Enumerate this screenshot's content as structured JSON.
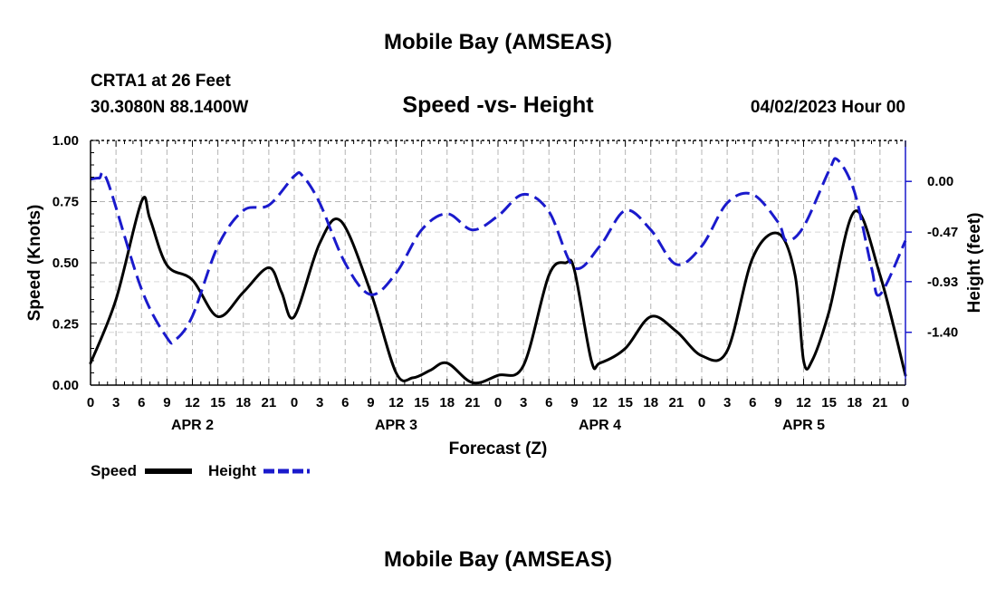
{
  "page": {
    "top_title": "Mobile Bay (AMSEAS)",
    "bottom_title": "Mobile Bay (AMSEAS)"
  },
  "header": {
    "station": "CRTA1 at 26 Feet",
    "coords": "30.3080N  88.1400W",
    "plot_title": "Speed -vs- Height",
    "date": "04/02/2023 Hour 00"
  },
  "legend": {
    "speed_label": "Speed",
    "height_label": "Height"
  },
  "colors": {
    "speed": "#000000",
    "height": "#1a1acc",
    "grid": "#b4b4b4"
  },
  "chart_data": {
    "type": "line",
    "title": "Speed -vs- Height",
    "xlabel": "Forecast (Z)",
    "ylabel": "Speed (Knots)",
    "y2label": "Height (feet)",
    "grid": true,
    "legend_position": "bottom-left",
    "xlim": [
      0,
      96
    ],
    "ylim": [
      0,
      1
    ],
    "y2lim": [
      -1.89,
      0.38
    ],
    "x_tick_labels": [
      "0",
      "3",
      "6",
      "9",
      "12",
      "15",
      "18",
      "21",
      "0",
      "3",
      "6",
      "9",
      "12",
      "15",
      "18",
      "21",
      "0",
      "3",
      "6",
      "9",
      "12",
      "15",
      "18",
      "21",
      "0",
      "3",
      "6",
      "9",
      "12",
      "15",
      "18",
      "21",
      "0"
    ],
    "y_ticks": [
      0,
      0.25,
      0.5,
      0.75,
      1.0
    ],
    "y_tick_labels": [
      "0.00",
      "0.25",
      "0.50",
      "0.75",
      "1.00"
    ],
    "y2_ticks": [
      0,
      -0.47,
      -0.93,
      -1.4
    ],
    "y2_tick_labels": [
      "0.00",
      "-0.47",
      "-0.93",
      "-1.40"
    ],
    "day_labels": [
      {
        "x": 12,
        "label": "APR 2"
      },
      {
        "x": 36,
        "label": "APR 3"
      },
      {
        "x": 60,
        "label": "APR 4"
      },
      {
        "x": 84,
        "label": "APR 5"
      }
    ],
    "series": [
      {
        "name": "Speed",
        "axis": "left",
        "style": "solid",
        "x": [
          0,
          3,
          6,
          7,
          9,
          12,
          15,
          18,
          21,
          22.5,
          24,
          27,
          29.5,
          33,
          36,
          38,
          40,
          42,
          45,
          48,
          51,
          54,
          56,
          57,
          59,
          60,
          63,
          66,
          69,
          72,
          75,
          78,
          81,
          83,
          84,
          85,
          87,
          90,
          93,
          96
        ],
        "values": [
          0.09,
          0.35,
          0.75,
          0.68,
          0.49,
          0.43,
          0.28,
          0.38,
          0.48,
          0.38,
          0.28,
          0.58,
          0.67,
          0.38,
          0.05,
          0.03,
          0.06,
          0.09,
          0.01,
          0.04,
          0.08,
          0.45,
          0.5,
          0.47,
          0.1,
          0.09,
          0.15,
          0.28,
          0.22,
          0.12,
          0.14,
          0.52,
          0.62,
          0.45,
          0.1,
          0.1,
          0.3,
          0.71,
          0.45,
          0.04
        ]
      },
      {
        "name": "Height",
        "axis": "right",
        "style": "dashed",
        "x": [
          0,
          1,
          2,
          6,
          9,
          10,
          12,
          15,
          18,
          21,
          24,
          25,
          27,
          30,
          33,
          36,
          39,
          42,
          45,
          48,
          51,
          54,
          57,
          60,
          63,
          66,
          69,
          72,
          75,
          78,
          81,
          82,
          84,
          87,
          88,
          90,
          92,
          93,
          96
        ],
        "values": [
          0.02,
          0.03,
          0.0,
          -1.0,
          -1.45,
          -1.47,
          -1.25,
          -0.6,
          -0.27,
          -0.22,
          0.05,
          0.05,
          -0.2,
          -0.76,
          -1.05,
          -0.85,
          -0.45,
          -0.3,
          -0.45,
          -0.32,
          -0.12,
          -0.28,
          -0.8,
          -0.6,
          -0.27,
          -0.45,
          -0.77,
          -0.6,
          -0.2,
          -0.12,
          -0.38,
          -0.55,
          -0.42,
          0.1,
          0.2,
          -0.1,
          -0.8,
          -1.05,
          -0.55
        ]
      }
    ]
  }
}
